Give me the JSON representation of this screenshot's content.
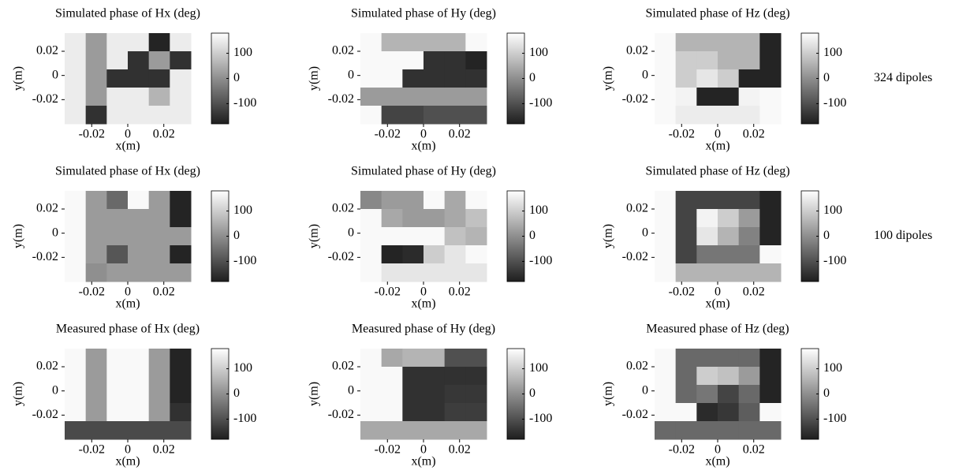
{
  "chart_data": [
    {
      "type": "heatmap",
      "title": "Simulated phase of Hx (deg)",
      "xlabel": "x(m)",
      "ylabel": "y(m)",
      "xlim": [
        -0.035,
        0.035
      ],
      "ylim": [
        -0.04,
        0.035
      ],
      "xticks": [
        -0.02,
        0,
        0.02
      ],
      "yticks": [
        -0.02,
        0,
        0.02
      ],
      "clim": [
        -180,
        180
      ],
      "cticks": [
        -100,
        0,
        100
      ],
      "colormap": "gray",
      "z": [
        [
          150,
          20,
          150,
          150,
          -170,
          150
        ],
        [
          150,
          20,
          150,
          -150,
          20,
          -150
        ],
        [
          150,
          20,
          -150,
          -150,
          -150,
          150
        ],
        [
          150,
          20,
          150,
          150,
          60,
          150
        ],
        [
          150,
          -150,
          150,
          150,
          150,
          150
        ]
      ]
    },
    {
      "type": "heatmap",
      "title": "Simulated phase of Hy (deg)",
      "xlabel": "x(m)",
      "ylabel": "y(m)",
      "xlim": [
        -0.035,
        0.035
      ],
      "ylim": [
        -0.04,
        0.035
      ],
      "xticks": [
        -0.02,
        0,
        0.02
      ],
      "yticks": [
        -0.02,
        0,
        0.02
      ],
      "clim": [
        -180,
        180
      ],
      "cticks": [
        -100,
        0,
        100
      ],
      "colormap": "gray",
      "z": [
        [
          170,
          60,
          60,
          60,
          60,
          170
        ],
        [
          170,
          170,
          170,
          -150,
          -150,
          -170
        ],
        [
          170,
          170,
          -150,
          -150,
          -150,
          -150
        ],
        [
          20,
          20,
          20,
          20,
          20,
          20
        ],
        [
          170,
          -120,
          -120,
          -100,
          -100,
          -100
        ]
      ]
    },
    {
      "type": "heatmap",
      "title": "Simulated phase of Hz (deg)",
      "xlabel": "x(m)",
      "ylabel": "y(m)",
      "xlim": [
        -0.035,
        0.035
      ],
      "ylim": [
        -0.04,
        0.035
      ],
      "xticks": [
        -0.02,
        0,
        0.02
      ],
      "yticks": [
        -0.02,
        0,
        0.02
      ],
      "clim": [
        -180,
        180
      ],
      "cticks": [
        -100,
        0,
        100
      ],
      "colormap": "gray",
      "annotation": "324 dipoles",
      "z": [
        [
          170,
          60,
          60,
          60,
          60,
          -170
        ],
        [
          170,
          100,
          100,
          60,
          60,
          -170
        ],
        [
          170,
          100,
          140,
          100,
          -170,
          -170
        ],
        [
          170,
          160,
          -170,
          -170,
          160,
          170
        ],
        [
          170,
          150,
          150,
          150,
          150,
          170
        ]
      ]
    },
    {
      "type": "heatmap",
      "title": "Simulated phase of Hx (deg)",
      "xlabel": "x(m)",
      "ylabel": "y(m)",
      "xlim": [
        -0.035,
        0.035
      ],
      "ylim": [
        -0.04,
        0.035
      ],
      "xticks": [
        -0.02,
        0,
        0.02
      ],
      "yticks": [
        -0.02,
        0,
        0.02
      ],
      "clim": [
        -180,
        180
      ],
      "cticks": [
        -100,
        0,
        100
      ],
      "colormap": "gray",
      "z": [
        [
          170,
          20,
          -60,
          170,
          20,
          -170
        ],
        [
          170,
          20,
          20,
          20,
          20,
          -170
        ],
        [
          170,
          20,
          20,
          20,
          20,
          20
        ],
        [
          170,
          20,
          -90,
          20,
          20,
          -170
        ],
        [
          170,
          0,
          20,
          20,
          20,
          20
        ]
      ]
    },
    {
      "type": "heatmap",
      "title": "Simulated phase of Hy (deg)",
      "xlabel": "x(m)",
      "ylabel": "y(m)",
      "xlim": [
        -0.035,
        0.035
      ],
      "ylim": [
        -0.04,
        0.035
      ],
      "xticks": [
        -0.02,
        0,
        0.02
      ],
      "yticks": [
        -0.02,
        0,
        0.02
      ],
      "clim": [
        -180,
        180
      ],
      "cticks": [
        -100,
        0,
        100
      ],
      "colormap": "gray",
      "z": [
        [
          -10,
          20,
          20,
          170,
          40,
          170
        ],
        [
          170,
          40,
          20,
          20,
          40,
          80
        ],
        [
          170,
          170,
          170,
          170,
          80,
          60
        ],
        [
          170,
          -170,
          -160,
          100,
          140,
          170
        ],
        [
          170,
          140,
          140,
          140,
          140,
          140
        ]
      ]
    },
    {
      "type": "heatmap",
      "title": "Simulated phase of Hz (deg)",
      "xlabel": "x(m)",
      "ylabel": "y(m)",
      "xlim": [
        -0.035,
        0.035
      ],
      "ylim": [
        -0.04,
        0.035
      ],
      "xticks": [
        -0.02,
        0,
        0.02
      ],
      "yticks": [
        -0.02,
        0,
        0.02
      ],
      "clim": [
        -180,
        180
      ],
      "cticks": [
        -100,
        0,
        100
      ],
      "colormap": "gray",
      "annotation": "100 dipoles",
      "z": [
        [
          170,
          -120,
          -120,
          -120,
          -120,
          -170
        ],
        [
          170,
          -120,
          160,
          100,
          20,
          -170
        ],
        [
          170,
          -120,
          140,
          60,
          -20,
          -170
        ],
        [
          170,
          -120,
          -40,
          -40,
          -40,
          170
        ],
        [
          170,
          60,
          60,
          60,
          60,
          60
        ]
      ]
    },
    {
      "type": "heatmap",
      "title": "Measured phase of Hx (deg)",
      "xlabel": "x(m)",
      "ylabel": "y(m)",
      "xlim": [
        -0.035,
        0.035
      ],
      "ylim": [
        -0.04,
        0.035
      ],
      "xticks": [
        -0.02,
        0,
        0.02
      ],
      "yticks": [
        -0.02,
        0,
        0.02
      ],
      "clim": [
        -180,
        180
      ],
      "cticks": [
        -100,
        0,
        100
      ],
      "colormap": "gray",
      "z": [
        [
          170,
          20,
          170,
          170,
          20,
          -170
        ],
        [
          170,
          20,
          170,
          170,
          20,
          -170
        ],
        [
          170,
          20,
          170,
          170,
          20,
          -170
        ],
        [
          170,
          20,
          170,
          170,
          20,
          -150
        ],
        [
          -110,
          -110,
          -110,
          -110,
          -110,
          -110
        ]
      ]
    },
    {
      "type": "heatmap",
      "title": "Measured phase of Hy (deg)",
      "xlabel": "x(m)",
      "ylabel": "y(m)",
      "xlim": [
        -0.035,
        0.035
      ],
      "ylim": [
        -0.04,
        0.035
      ],
      "xticks": [
        -0.02,
        0,
        0.02
      ],
      "yticks": [
        -0.02,
        0,
        0.02
      ],
      "clim": [
        -180,
        180
      ],
      "cticks": [
        -100,
        0,
        100
      ],
      "colormap": "gray",
      "z": [
        [
          170,
          40,
          60,
          60,
          -100,
          -100
        ],
        [
          170,
          170,
          -150,
          -150,
          -150,
          -150
        ],
        [
          170,
          170,
          -150,
          -150,
          -140,
          -140
        ],
        [
          170,
          170,
          -150,
          -150,
          -130,
          -130
        ],
        [
          40,
          40,
          40,
          40,
          40,
          40
        ]
      ]
    },
    {
      "type": "heatmap",
      "title": "Measured phase of Hz (deg)",
      "xlabel": "x(m)",
      "ylabel": "y(m)",
      "xlim": [
        -0.035,
        0.035
      ],
      "ylim": [
        -0.04,
        0.035
      ],
      "xticks": [
        -0.02,
        0,
        0.02
      ],
      "yticks": [
        -0.02,
        0,
        0.02
      ],
      "clim": [
        -180,
        180
      ],
      "cticks": [
        -100,
        0,
        100
      ],
      "colormap": "gray",
      "z": [
        [
          170,
          -60,
          -60,
          -60,
          -60,
          -170
        ],
        [
          170,
          -60,
          100,
          80,
          20,
          -170
        ],
        [
          170,
          -60,
          -40,
          -120,
          -60,
          -170
        ],
        [
          170,
          170,
          -160,
          -140,
          -80,
          170
        ],
        [
          -60,
          -60,
          -60,
          -60,
          -60,
          -60
        ]
      ]
    }
  ]
}
